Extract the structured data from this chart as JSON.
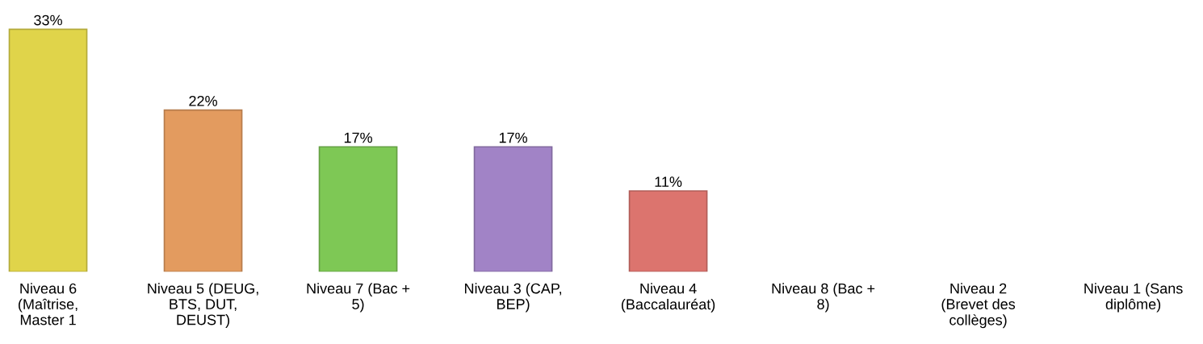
{
  "chart_data": {
    "type": "bar",
    "categories": [
      "Niveau 6 (Maîtrise, Master 1",
      "Niveau 5 (DEUG, BTS, DUT, DEUST)",
      "Niveau 7 (Bac + 5)",
      "Niveau 3 (CAP, BEP)",
      "Niveau 4 (Baccalauréat)",
      "Niveau 8 (Bac + 8)",
      "Niveau 2 (Brevet des collèges)",
      "Niveau 1 (Sans diplôme)"
    ],
    "values": [
      33,
      22,
      17,
      17,
      11,
      null,
      null,
      null
    ],
    "value_labels": [
      "33%",
      "22%",
      "17%",
      "17%",
      "11%",
      null,
      null,
      null
    ],
    "colors": [
      "#e0d44a",
      "#e39b5f",
      "#7ec855",
      "#a183c6",
      "#dc746e",
      null,
      null,
      null
    ],
    "grid": false,
    "legend": false
  }
}
